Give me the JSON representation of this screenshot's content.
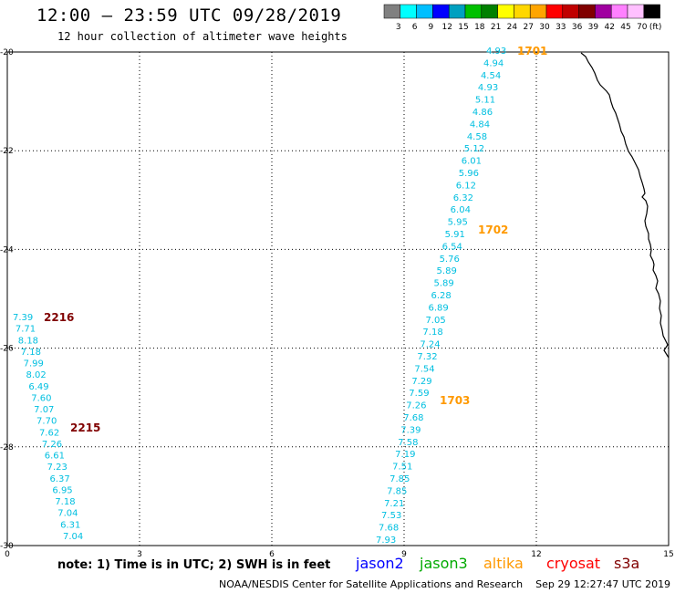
{
  "header": {
    "title": "12:00 – 23:59 UTC 09/28/2019",
    "subtitle": "12 hour collection of altimeter wave heights"
  },
  "colorbar": {
    "swatches": [
      "#808080",
      "#00ffff",
      "#00bfff",
      "#0000ff",
      "#00a0c0",
      "#00c000",
      "#008000",
      "#ffff00",
      "#ffd700",
      "#ffa500",
      "#ff0000",
      "#c00000",
      "#800000",
      "#a000a0",
      "#ff80ff",
      "#ffc0ff",
      "#000000"
    ],
    "labels": [
      "3",
      "6",
      "9",
      "12",
      "15",
      "18",
      "21",
      "24",
      "27",
      "30",
      "33",
      "36",
      "39",
      "42",
      "45",
      "70",
      "(ft)"
    ]
  },
  "axes": {
    "x_ticks": [
      "0",
      "3",
      "6",
      "9",
      "12",
      "15"
    ],
    "y_ticks": [
      "-20",
      "-22",
      "-24",
      "-26",
      "-28",
      "-30"
    ]
  },
  "track_right": {
    "values": [
      "4.93",
      "4.94",
      "4.54",
      "4.93",
      "5.11",
      "4.86",
      "4.84",
      "4.58",
      "5.12",
      "6.01",
      "5.96",
      "6.12",
      "6.32",
      "6.04",
      "5.95",
      "5.91",
      "6.54",
      "5.76",
      "5.89",
      "5.89",
      "6.28",
      "6.89",
      "7.05",
      "7.18",
      "7.24",
      "7.32",
      "7.54",
      "7.29",
      "7.59",
      "7.26",
      "7.68",
      "7.39",
      "7.58",
      "7.19",
      "7.51",
      "7.85",
      "7.85",
      "7.21",
      "7.53",
      "7.68",
      "7.93"
    ],
    "color": "#00bfe0"
  },
  "track_left": {
    "values": [
      "7.39",
      "7.71",
      "8.18",
      "7.18",
      "7.99",
      "8.02",
      "6.49",
      "7.60",
      "7.07",
      "7.70",
      "7.62",
      "7.26",
      "6.61",
      "7.23",
      "6.37",
      "6.95",
      "7.18",
      "7.04",
      "6.31",
      "7.04"
    ],
    "color": "#00bfe0"
  },
  "time_labels": [
    {
      "text": "1701",
      "color": "#ff9900"
    },
    {
      "text": "1702",
      "color": "#ff9900"
    },
    {
      "text": "1703",
      "color": "#ff9900"
    },
    {
      "text": "2216",
      "color": "#800000"
    },
    {
      "text": "2215",
      "color": "#800000"
    }
  ],
  "legend": {
    "note": "note: 1) Time is in UTC; 2) SWH is in feet",
    "satellites": [
      {
        "name": "jason2",
        "color": "#0000ff"
      },
      {
        "name": "jason3",
        "color": "#00aa00"
      },
      {
        "name": "altika",
        "color": "#ff9900"
      },
      {
        "name": "cryosat",
        "color": "#ff0000"
      },
      {
        "name": "s3a",
        "color": "#800000"
      }
    ]
  },
  "footer": {
    "credit": "NOAA/NESDIS Center for Satellite Applications and Research",
    "timestamp": "Sep 29 12:27:47 UTC 2019"
  }
}
